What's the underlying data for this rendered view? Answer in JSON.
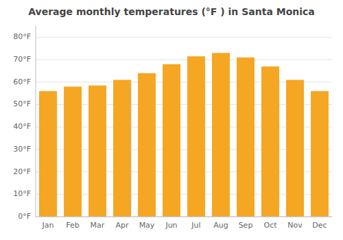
{
  "chart_data": {
    "type": "bar",
    "title": "Average monthly temperatures (°F ) in Santa Monica",
    "categories": [
      "Jan",
      "Feb",
      "Mar",
      "Apr",
      "May",
      "Jun",
      "Jul",
      "Aug",
      "Sep",
      "Oct",
      "Nov",
      "Dec"
    ],
    "values": [
      56,
      58,
      58.5,
      61,
      64,
      68,
      71.5,
      73,
      71,
      67,
      61,
      56
    ],
    "color": "#F5A623",
    "ylim": [
      0,
      85
    ],
    "yticks": [
      {
        "value": 0,
        "label": "0°F"
      },
      {
        "value": 10,
        "label": "10°F"
      },
      {
        "value": 20,
        "label": "20°F"
      },
      {
        "value": 30,
        "label": "30°F"
      },
      {
        "value": 40,
        "label": "40°F"
      },
      {
        "value": 50,
        "label": "50°F"
      },
      {
        "value": 60,
        "label": "60°F"
      },
      {
        "value": 70,
        "label": "70°F"
      },
      {
        "value": 80,
        "label": "80°F"
      }
    ],
    "grid": true
  }
}
